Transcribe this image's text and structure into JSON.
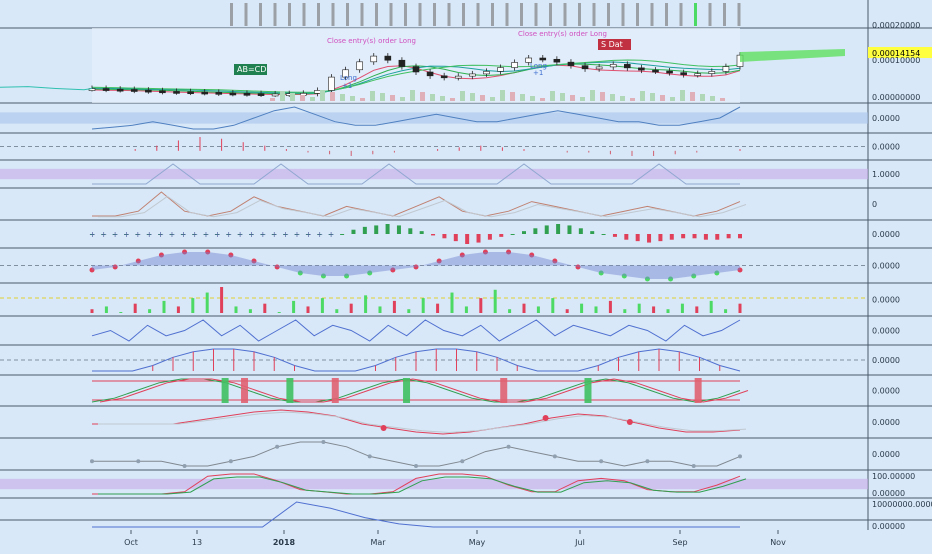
{
  "theme": {
    "background": "#d8e8f8",
    "axis_bg": "#d0e2f5",
    "separator": "#4a5a6a",
    "gridline": "#b8cde0",
    "text": "#2a3a4a",
    "bull": "#4cd964",
    "bear": "#e0405a",
    "neutral_gray": "#9aa0a6",
    "purple_band": "#c8a8e8",
    "blue_band": "#a8c4ec"
  },
  "chart_data": {
    "type": "line",
    "x_axis": {
      "tick_labels": [
        "Oct",
        "13",
        "2018",
        "Mar",
        "May",
        "Jul",
        "Sep",
        "Nov"
      ]
    },
    "main": {
      "last_price": "0.00014154",
      "y_tick_labels": [
        "0.00020000",
        "0.00010000",
        "0.00000000"
      ],
      "annotations": [
        {
          "text": "AB=CD",
          "kind": "pattern_label"
        },
        {
          "text": "Close entry(s) order Long",
          "kind": "order"
        },
        {
          "text": "Close entry(s) order Long",
          "kind": "order"
        },
        {
          "text": "Long",
          "kind": "entry"
        },
        {
          "text": "+1",
          "kind": "entry_qty"
        },
        {
          "text": "Long",
          "kind": "entry"
        },
        {
          "text": "+1",
          "kind": "entry_qty"
        },
        {
          "text": "S Dat",
          "kind": "flag"
        }
      ],
      "price_series": [
        3.6e-05,
        3.4e-05,
        3.3e-05,
        3.1e-05,
        2.9e-05,
        2.7e-05,
        2.6e-05,
        2.5e-05,
        2.4e-05,
        2.2e-05,
        2.1e-05,
        2e-05,
        1.9e-05,
        1.9e-05,
        2e-05,
        2.1e-05,
        3e-05,
        7.2e-05,
        9.5e-05,
        0.00012,
        0.000138,
        0.000125,
        0.000105,
        8.8e-05,
        7.6e-05,
        7.1e-05,
        7.5e-05,
        8.2e-05,
        9e-05,
        0.000102,
        0.000118,
        0.000132,
        0.000128,
        0.000119,
        0.000108,
        9.8e-05,
        0.000104,
        0.000112,
        0.000101,
        9.4e-05,
        9.1e-05,
        8.6e-05,
        8e-05,
        8.3e-05,
        9e-05,
        0.000105,
        0.000141
      ]
    },
    "oscillators": [
      {
        "y_tick_labels": [
          "0.0000"
        ],
        "values": [
          2,
          2.5,
          3,
          4,
          3,
          2,
          2,
          3,
          5,
          7,
          8,
          6,
          4,
          3,
          3,
          4,
          5,
          6,
          5,
          4,
          4,
          5,
          6,
          7,
          6,
          5,
          4,
          4,
          3,
          3,
          4,
          5,
          8
        ]
      },
      {
        "y_tick_labels": [
          "0.0000"
        ],
        "values": [
          0,
          0,
          1,
          3,
          6,
          8,
          7,
          5,
          3,
          1,
          -1,
          -2,
          -3,
          -2,
          -1,
          0,
          1,
          2,
          3,
          2,
          1,
          0,
          -1,
          -1,
          -2,
          -3,
          -3,
          -2,
          -1,
          0,
          1
        ]
      },
      {
        "y_tick_labels": [
          "1.0000"
        ],
        "values": [
          5,
          5,
          5,
          6,
          5,
          5,
          5,
          6,
          5,
          5,
          5,
          6,
          5,
          5,
          5,
          5,
          6,
          5,
          5,
          5,
          5,
          6,
          5,
          5,
          5
        ]
      },
      {
        "y_tick_labels": [
          "0"
        ],
        "values": [
          1,
          1,
          2,
          6,
          2,
          1,
          2,
          5,
          3,
          2,
          1,
          3,
          2,
          1,
          3,
          5,
          2,
          1,
          2,
          4,
          3,
          2,
          1,
          2,
          3,
          2,
          1,
          2,
          4
        ]
      },
      {
        "y_tick_labels": [
          "0.0000"
        ],
        "values": [
          0,
          0,
          0,
          0,
          0,
          0,
          0,
          0,
          0,
          0,
          0,
          0,
          0,
          0,
          0,
          0,
          0,
          0,
          0,
          0,
          0,
          0,
          0,
          3,
          5,
          6,
          7,
          6,
          4,
          2,
          -1,
          -3,
          -5,
          -7,
          -6,
          -4,
          -2,
          0,
          2,
          4,
          6,
          7,
          6,
          4,
          2,
          0,
          -2,
          -4,
          -5,
          -6,
          -5,
          -4,
          -3,
          -3,
          -4,
          -4,
          -3,
          -3
        ]
      },
      {
        "y_tick_labels": [
          "0.0000"
        ],
        "values": [
          0,
          1,
          3,
          5,
          6,
          6,
          5,
          3,
          1,
          -1,
          -2,
          -2,
          -1,
          0,
          1,
          3,
          5,
          6,
          6,
          5,
          3,
          1,
          -1,
          -2,
          -3,
          -3,
          -2,
          -1,
          0
        ]
      },
      {
        "y_tick_labels": [
          "0.0000"
        ],
        "values": [
          2,
          3,
          1,
          4,
          2,
          5,
          3,
          6,
          8,
          10,
          3,
          2,
          4,
          1,
          5,
          3,
          6,
          2,
          4,
          7,
          3,
          5,
          2,
          6,
          4,
          8,
          3,
          6,
          9,
          2,
          4,
          3,
          6,
          2,
          4,
          3,
          5,
          2,
          4,
          3,
          2,
          4,
          3,
          5,
          2,
          4
        ]
      },
      {
        "y_tick_labels": [
          "0.0000"
        ],
        "values": [
          3,
          4,
          2,
          5,
          3,
          4,
          6,
          3,
          5,
          2,
          4,
          6,
          3,
          5,
          4,
          2,
          5,
          3,
          6,
          4,
          3,
          5,
          2,
          4,
          6,
          3,
          5,
          4,
          3,
          5,
          4,
          2,
          5,
          3,
          4,
          6
        ]
      },
      {
        "y_tick_labels": [
          "0.0000"
        ],
        "values": [
          0,
          0,
          0,
          2,
          5,
          7,
          8,
          8,
          7,
          5,
          2,
          0,
          0,
          0,
          2,
          5,
          7,
          8,
          8,
          7,
          5,
          2,
          0,
          0,
          0,
          2,
          5,
          7,
          8,
          7,
          5,
          2,
          0
        ]
      },
      {
        "y_tick_labels": [
          "0.0000"
        ],
        "values": [
          0,
          1,
          3,
          5,
          6,
          6,
          5,
          3,
          1,
          0,
          0,
          1,
          3,
          5,
          6,
          5,
          3,
          1,
          0,
          0,
          1,
          3,
          5,
          6,
          5,
          3,
          1,
          0,
          1,
          3
        ]
      },
      {
        "y_tick_labels": [
          "0.0000"
        ],
        "values": [
          0,
          0,
          0,
          0,
          1,
          2,
          3,
          3.5,
          3,
          2,
          0,
          -1,
          -2,
          -2.5,
          -2,
          -1,
          0,
          1.5,
          2.5,
          2,
          0.5,
          -1,
          -2,
          -2,
          -1.5
        ]
      },
      {
        "y_tick_labels": [
          "0.0000"
        ],
        "values": [
          0,
          0,
          0,
          0,
          -1,
          -1,
          0,
          1,
          3,
          4,
          4,
          3,
          1,
          0,
          -1,
          -1,
          0,
          2,
          3,
          2,
          1,
          0,
          0,
          -1,
          0,
          0,
          -1,
          -1,
          1
        ]
      },
      {
        "y_tick_labels": [
          "100.00000",
          "0.00000"
        ],
        "values": [
          0,
          0,
          0,
          0,
          1,
          8,
          9,
          9,
          6,
          2,
          1,
          0,
          0,
          1,
          7,
          9,
          9,
          8,
          4,
          1,
          1,
          6,
          7,
          6,
          2,
          1,
          1,
          4,
          8
        ]
      },
      {
        "y_tick_labels": [
          "10000000.0000",
          "0.00000"
        ],
        "values": [
          0,
          0,
          0,
          0,
          0,
          0,
          8,
          6,
          3,
          1,
          0,
          0,
          0,
          0,
          0,
          0,
          0,
          0,
          0,
          0
        ]
      }
    ]
  }
}
